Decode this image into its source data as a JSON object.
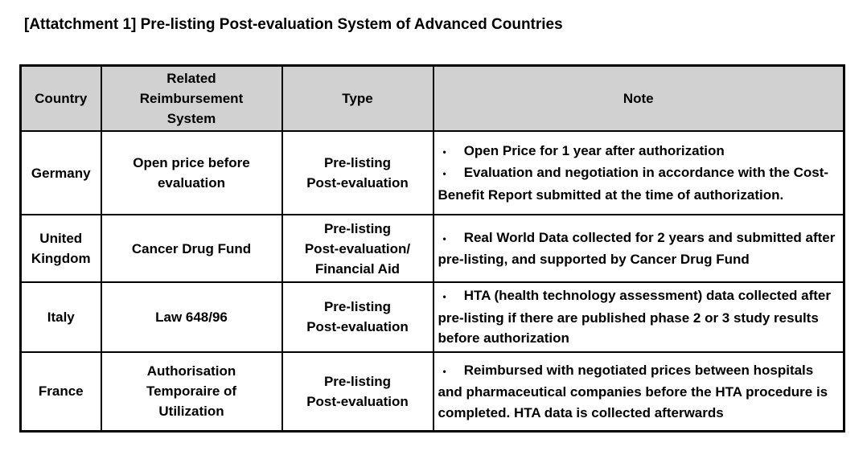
{
  "title": "[Attatchment 1] Pre-listing Post-evaluation System of Advanced Countries",
  "colors": {
    "header_bg": "#d1d1d1",
    "border": "#000000",
    "text": "#000000",
    "page_bg": "#ffffff"
  },
  "icons": {
    "bullet": "•"
  },
  "table": {
    "headers": [
      {
        "id": "country",
        "lines": [
          "Country"
        ]
      },
      {
        "id": "system",
        "lines": [
          "Related",
          "Reimbursement",
          "System"
        ]
      },
      {
        "id": "type",
        "lines": [
          "Type"
        ]
      },
      {
        "id": "note",
        "lines": [
          "Note"
        ]
      }
    ],
    "rows": [
      {
        "country": [
          "Germany"
        ],
        "system": [
          "Open price before",
          "evaluation"
        ],
        "type": [
          "Pre-listing",
          "Post-evaluation"
        ],
        "notes": [
          "Open Price for 1 year after authorization",
          "Evaluation and negotiation in accordance with the Cost-Benefit Report submitted at the time of authorization."
        ]
      },
      {
        "country": [
          "United",
          "Kingdom"
        ],
        "system": [
          "Cancer Drug Fund"
        ],
        "type": [
          "Pre-listing",
          "Post-evaluation/",
          "Financial Aid"
        ],
        "notes": [
          "Real World Data collected for 2 years and submitted after pre-listing, and supported by Cancer Drug Fund"
        ]
      },
      {
        "country": [
          "Italy"
        ],
        "system": [
          "Law 648/96"
        ],
        "type": [
          "Pre-listing",
          "Post-evaluation"
        ],
        "notes": [
          "HTA (health technology assessment) data collected after pre-listing if there are published phase 2 or 3 study results before authorization"
        ]
      },
      {
        "country": [
          "France"
        ],
        "system": [
          "Authorisation",
          "Temporaire of",
          "Utilization"
        ],
        "type": [
          "Pre-listing",
          "Post-evaluation"
        ],
        "notes": [
          "Reimbursed with negotiated prices between hospitals and pharmaceutical companies before the HTA procedure is completed. HTA data is collected afterwards"
        ]
      }
    ]
  }
}
